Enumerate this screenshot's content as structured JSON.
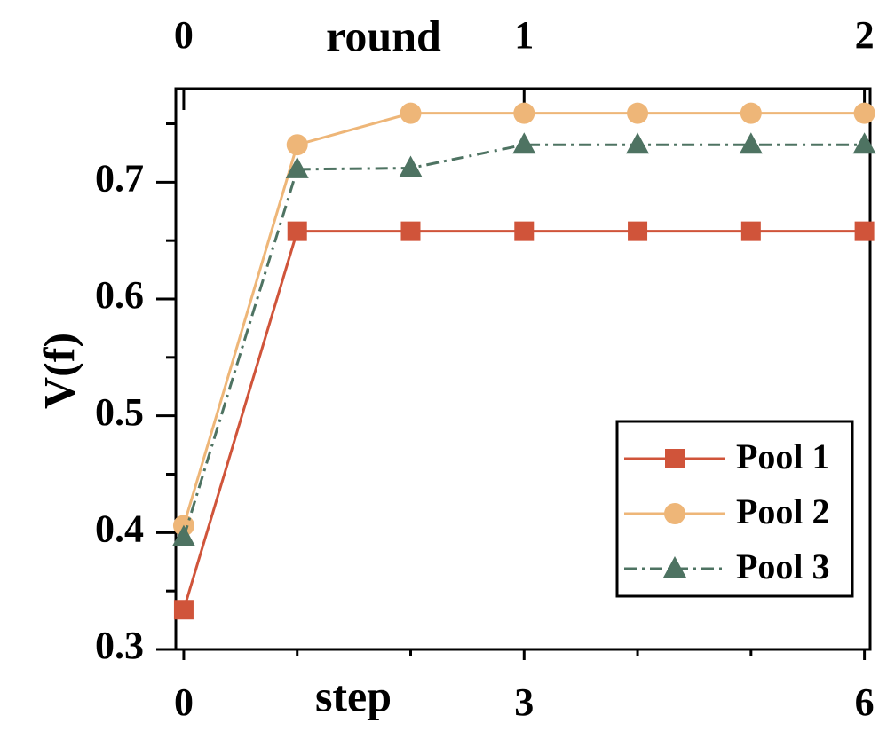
{
  "chart_data": {
    "type": "line",
    "xlabel": "step",
    "x2label": "round",
    "ylabel": "V(f)",
    "x": [
      0,
      1,
      2,
      3,
      4,
      5,
      6
    ],
    "xlim": [
      -0.07,
      6.05
    ],
    "xticks": [
      0,
      3,
      6
    ],
    "xminorticks": [
      1,
      2,
      4,
      5
    ],
    "x2lim": [
      -0.0233,
      2.0167
    ],
    "x2ticks": [
      0,
      1,
      2
    ],
    "ylim": [
      0.3,
      0.78
    ],
    "yticks": [
      0.3,
      0.4,
      0.5,
      0.6,
      0.7
    ],
    "yminorticks": [
      0.35,
      0.45,
      0.55,
      0.65,
      0.75
    ],
    "legend": "lower right",
    "series": [
      {
        "name": "Pool 1",
        "color": "#d0543a",
        "marker": "square",
        "dash": "solid",
        "values": [
          0.334,
          0.658,
          0.658,
          0.658,
          0.658,
          0.658,
          0.658
        ]
      },
      {
        "name": "Pool 2",
        "color": "#eeb678",
        "marker": "circle",
        "dash": "solid",
        "values": [
          0.406,
          0.732,
          0.759,
          0.759,
          0.759,
          0.759,
          0.759
        ]
      },
      {
        "name": "Pool 3",
        "color": "#4e7362",
        "marker": "triangle",
        "dash": "dashdot",
        "values": [
          0.396,
          0.711,
          0.712,
          0.732,
          0.732,
          0.732,
          0.732
        ]
      }
    ]
  }
}
